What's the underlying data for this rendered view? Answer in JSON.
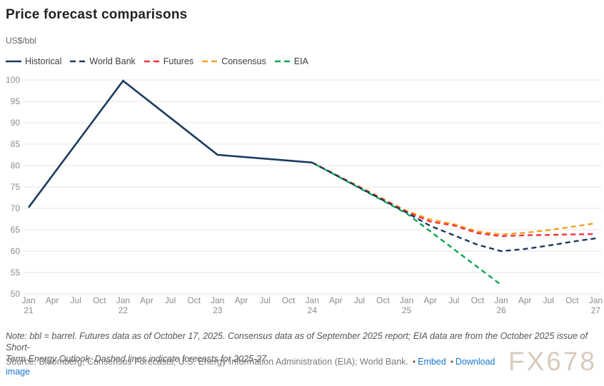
{
  "header": {
    "title": "Price forecast comparisons",
    "unit_label": "US$/bbl"
  },
  "legend": [
    {
      "label": "Historical",
      "color": "#1b3a5e",
      "dashed": false
    },
    {
      "label": "World Bank",
      "color": "#1b3a5e",
      "dashed": true
    },
    {
      "label": "Futures",
      "color": "#ee3342",
      "dashed": true
    },
    {
      "label": "Consensus",
      "color": "#f6a01b",
      "dashed": true
    },
    {
      "label": "EIA",
      "color": "#0ca64f",
      "dashed": true
    }
  ],
  "chart_data": {
    "type": "line",
    "title": "Price forecast comparisons",
    "ylabel": "US$/bbl",
    "ylim": [
      50,
      100
    ],
    "y_tick_step": 5,
    "y_ticks": [
      50,
      55,
      60,
      65,
      70,
      75,
      80,
      85,
      90,
      95,
      100
    ],
    "grid": "horizontal",
    "legend_position": "top-left",
    "x_ticks": [
      {
        "month": "Jan",
        "year": "21"
      },
      {
        "month": "Apr",
        "year": ""
      },
      {
        "month": "Jul",
        "year": ""
      },
      {
        "month": "Oct",
        "year": ""
      },
      {
        "month": "Jan",
        "year": "22"
      },
      {
        "month": "Apr",
        "year": ""
      },
      {
        "month": "Jul",
        "year": ""
      },
      {
        "month": "Oct",
        "year": ""
      },
      {
        "month": "Jan",
        "year": "23"
      },
      {
        "month": "Apr",
        "year": ""
      },
      {
        "month": "Jul",
        "year": ""
      },
      {
        "month": "Oct",
        "year": ""
      },
      {
        "month": "Jan",
        "year": "24"
      },
      {
        "month": "Apr",
        "year": ""
      },
      {
        "month": "Jul",
        "year": ""
      },
      {
        "month": "Oct",
        "year": ""
      },
      {
        "month": "Jan",
        "year": "25"
      },
      {
        "month": "Apr",
        "year": ""
      },
      {
        "month": "Jul",
        "year": ""
      },
      {
        "month": "Oct",
        "year": ""
      },
      {
        "month": "Jan",
        "year": "26"
      },
      {
        "month": "Apr",
        "year": ""
      },
      {
        "month": "Jul",
        "year": ""
      },
      {
        "month": "Oct",
        "year": ""
      },
      {
        "month": "Jan",
        "year": "27"
      }
    ],
    "series": [
      {
        "name": "Consensus",
        "color": "#f6a01b",
        "dashed": true,
        "points": [
          [
            12,
            80.7
          ],
          [
            16,
            69.4
          ],
          [
            17,
            67.4
          ],
          [
            18,
            66.3
          ],
          [
            19,
            64.6
          ],
          [
            20,
            63.9
          ],
          [
            21,
            64.3
          ],
          [
            22,
            64.9
          ],
          [
            23,
            65.7
          ],
          [
            24,
            66.5
          ]
        ]
      },
      {
        "name": "Futures",
        "color": "#ee3342",
        "dashed": true,
        "points": [
          [
            12,
            80.7
          ],
          [
            16,
            69.2
          ],
          [
            17,
            66.9
          ],
          [
            18,
            66.0
          ],
          [
            19,
            64.2
          ],
          [
            20,
            63.5
          ],
          [
            21,
            63.7
          ],
          [
            22,
            63.8
          ],
          [
            23,
            63.9
          ],
          [
            24,
            64.0
          ]
        ]
      },
      {
        "name": "EIA",
        "color": "#0ca64f",
        "dashed": true,
        "points": [
          [
            12,
            80.7
          ],
          [
            16,
            68.8
          ],
          [
            20,
            52.1
          ]
        ]
      },
      {
        "name": "World Bank",
        "color": "#1b3a5e",
        "dashed": true,
        "points": [
          [
            12,
            80.7
          ],
          [
            16,
            69.0
          ],
          [
            17,
            65.9
          ],
          [
            18,
            63.7
          ],
          [
            19,
            61.5
          ],
          [
            20,
            60.0
          ],
          [
            21,
            60.5
          ],
          [
            22,
            61.3
          ],
          [
            23,
            62.2
          ],
          [
            24,
            63.0
          ]
        ]
      },
      {
        "name": "Historical",
        "color": "#1b3a5e",
        "dashed": false,
        "points": [
          [
            0,
            70.2
          ],
          [
            4,
            99.8
          ],
          [
            8,
            82.5
          ],
          [
            12,
            80.7
          ]
        ]
      }
    ]
  },
  "footnote": {
    "line1": "Note: bbl = barrel. Futures data as of October 17, 2025. Consensus data as of September 2025 report; EIA data are from the October 2025 issue of Short-",
    "line2": "Term Energy Outlook. Dashed lines indicate forecasts for 2025-27."
  },
  "source": {
    "text": "Source: Bloomberg; Consensus Forecasts; U.S. Energy Information Administration (EIA); World Bank.",
    "embed_label": "Embed",
    "download_label": "Download image"
  },
  "watermark": "FX678"
}
